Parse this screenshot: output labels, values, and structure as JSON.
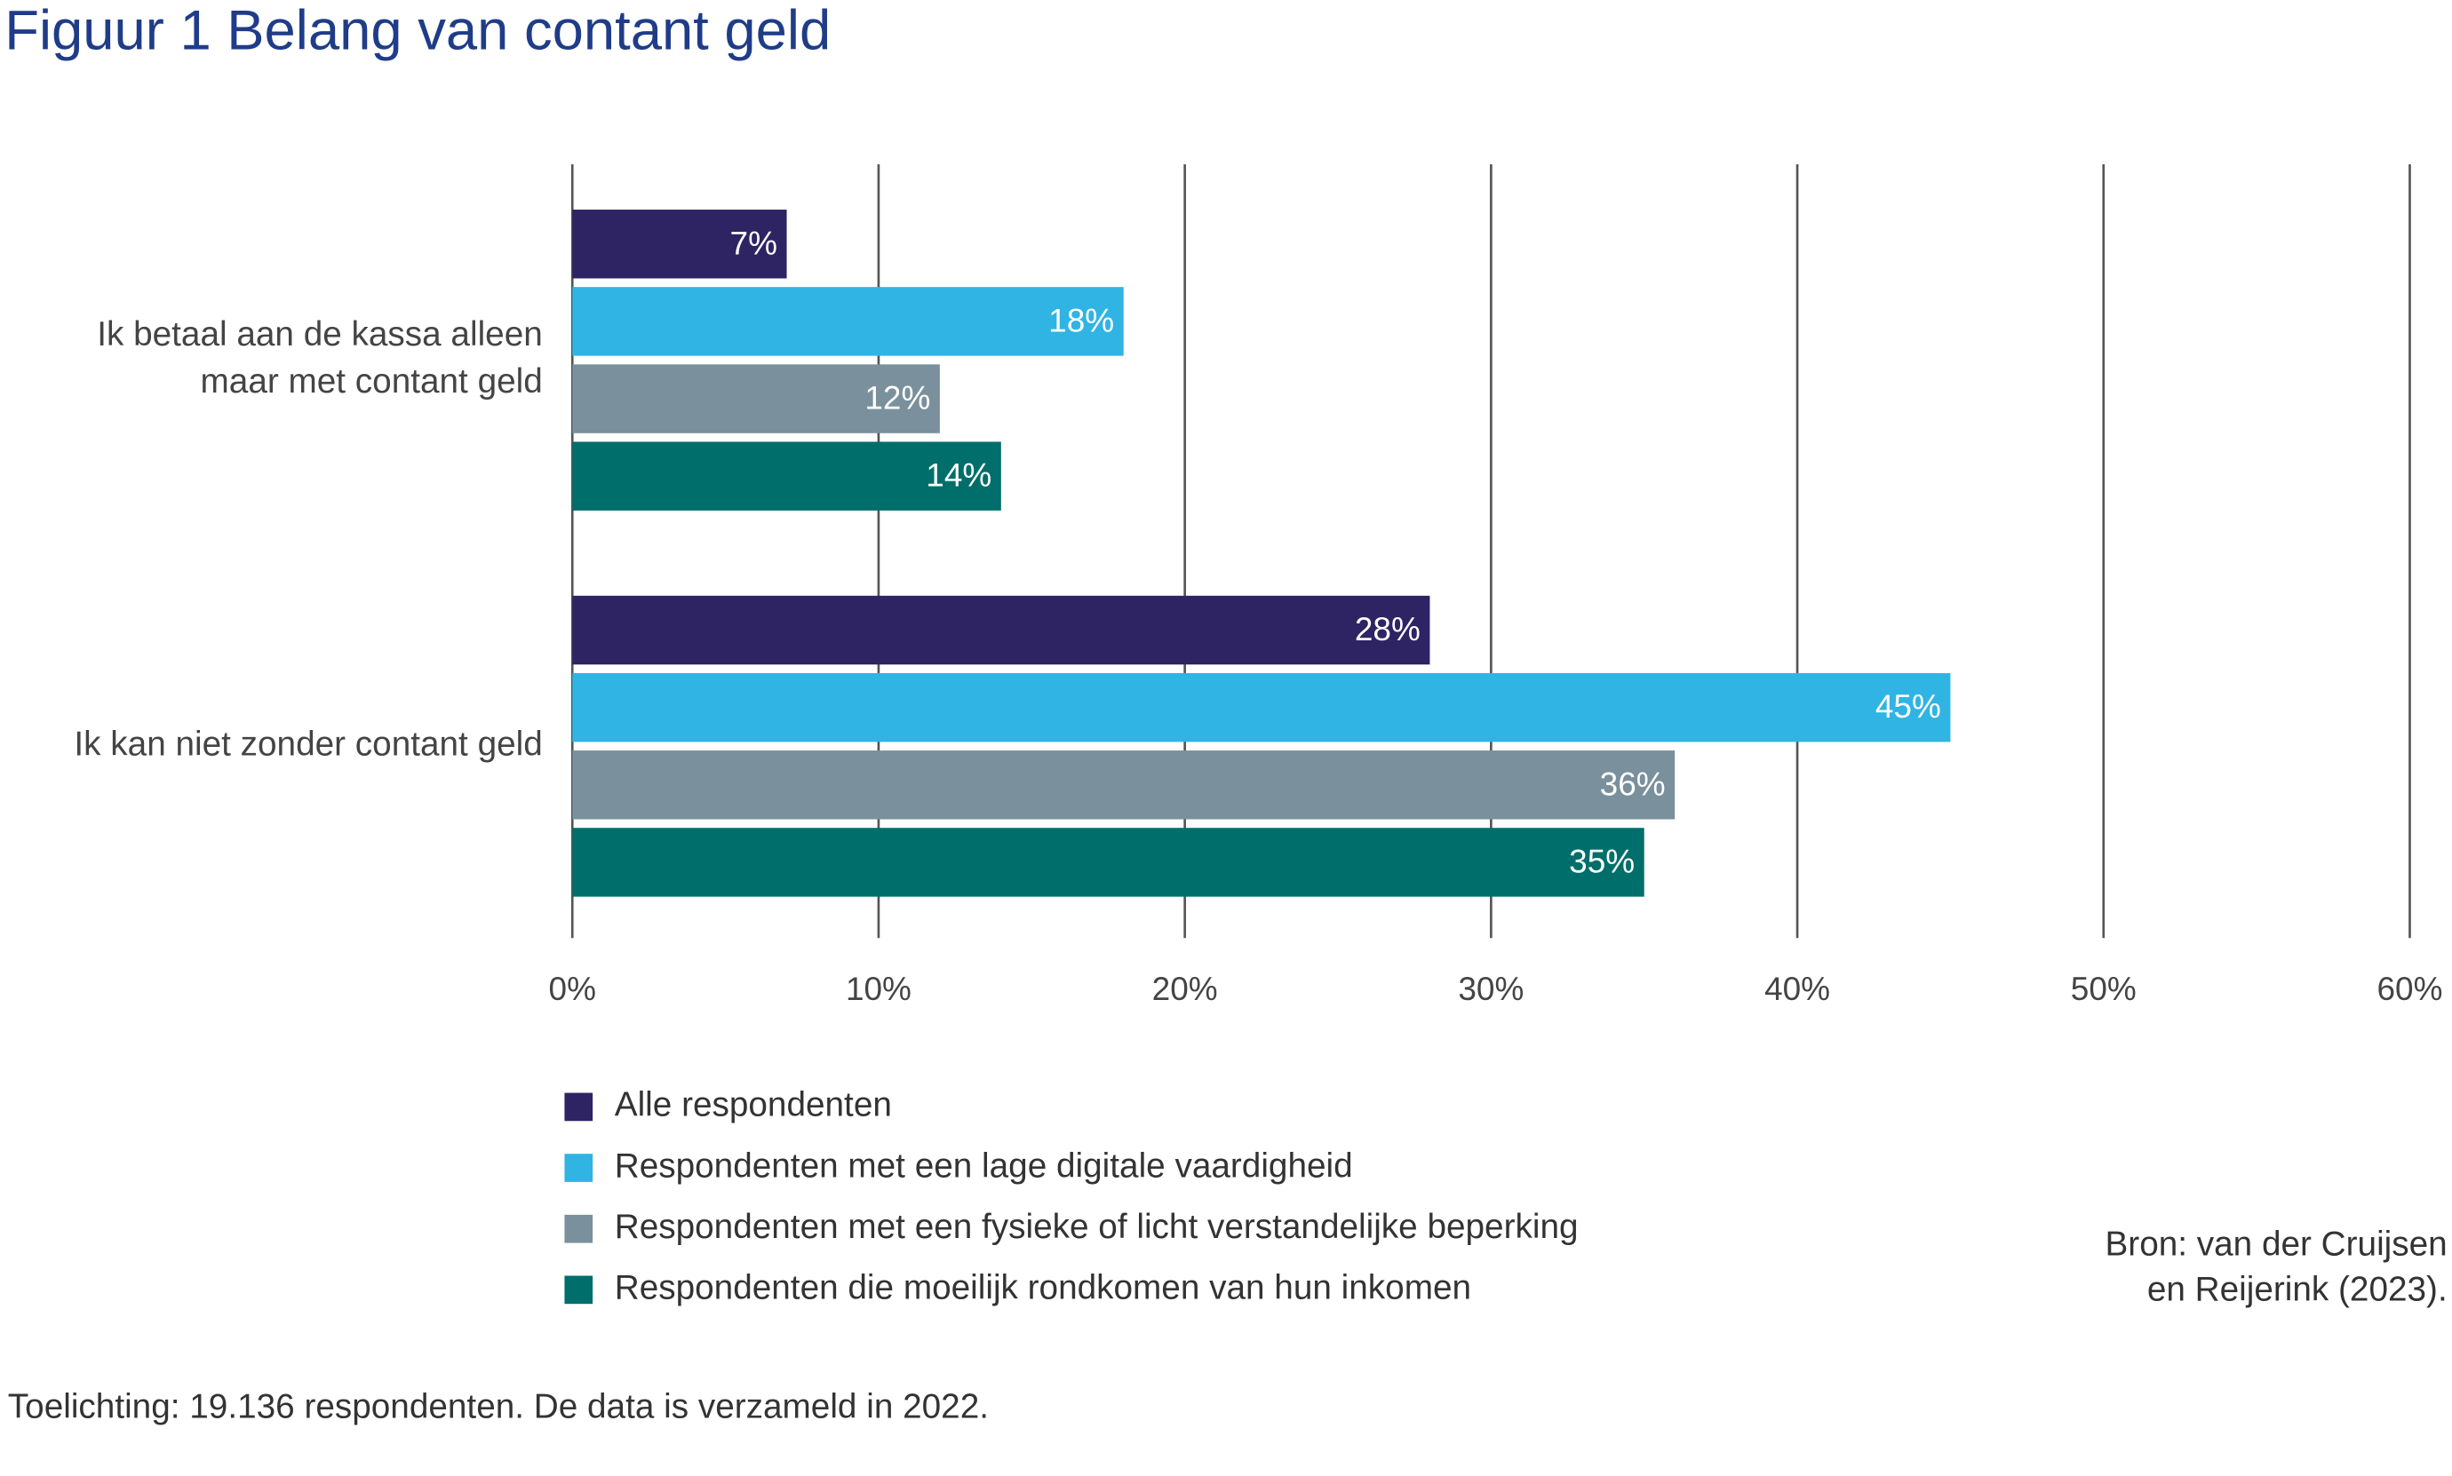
{
  "chart_data": {
    "type": "hbar",
    "title": "Figuur 1  Belang van contant geld",
    "categories": [
      "Ik betaal aan de kassa alleen maar met contant geld",
      "Ik kan niet zonder contant geld"
    ],
    "series": [
      {
        "name": "Alle respondenten",
        "color": "#2e2363",
        "values": [
          7,
          28
        ],
        "value_labels": [
          "7%",
          "28%"
        ]
      },
      {
        "name": "Respondenten met een lage digitale vaardigheid",
        "color": "#30b4e3",
        "values": [
          18,
          45
        ],
        "value_labels": [
          "18%",
          "45%"
        ]
      },
      {
        "name": "Respondenten met een fysieke of licht verstandelijke beperking",
        "color": "#7a909c",
        "values": [
          12,
          36
        ],
        "value_labels": [
          "12%",
          "36%"
        ]
      },
      {
        "name": "Respondenten die moeilijk rondkomen van hun inkomen",
        "color": "#006e6a",
        "values": [
          14,
          35
        ],
        "value_labels": [
          "14%",
          "35%"
        ]
      }
    ],
    "xlim": [
      0,
      60
    ],
    "xticks": [
      {
        "value": 0,
        "label": "0%"
      },
      {
        "value": 10,
        "label": "10%"
      },
      {
        "value": 20,
        "label": "20%"
      },
      {
        "value": 30,
        "label": "30%"
      },
      {
        "value": 40,
        "label": "40%"
      },
      {
        "value": 50,
        "label": "50%"
      },
      {
        "value": 60,
        "label": "60%"
      }
    ],
    "grid": true,
    "source": [
      "Bron: van der Cruijsen",
      "en Reijerink (2023)."
    ],
    "note": "Toelichting: 19.136 respondenten. De data is verzameld in 2022."
  }
}
